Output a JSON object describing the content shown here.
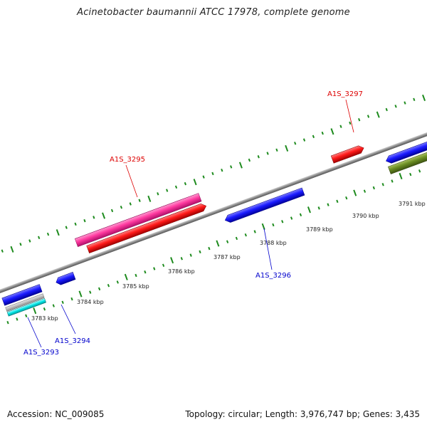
{
  "title": "Acinetobacter baumannii ATCC 17978, complete genome",
  "footer": {
    "accession": "Accession: NC_009085",
    "info": "Topology: circular; Length: 3,976,747 bp; Genes: 3,435"
  },
  "colors": {
    "plus_strand_gene": "#ff0000",
    "minus_strand_gene": "#0000ff",
    "rna": "#ff40a0",
    "other_olive": "#6b8e23",
    "grey_feature": "#aaaaaa",
    "cyan_feature": "#00e5e5",
    "tick": "#1e8b1e",
    "backbone": "#888888"
  },
  "scale": {
    "unit": "kbp",
    "labels": [
      "3783 kbp",
      "3784 kbp",
      "3785 kbp",
      "3786 kbp",
      "3787 kbp",
      "3788 kbp",
      "3789 kbp",
      "3790 kbp",
      "3791 kbp"
    ]
  },
  "genes": [
    {
      "label": "A1S_3293",
      "color": "#0000ff"
    },
    {
      "label": "A1S_3294",
      "color": "#0000ff"
    },
    {
      "label": "A1S_3295",
      "color": "#ff0000"
    },
    {
      "label": "A1S_3296",
      "color": "#0000ff"
    },
    {
      "label": "A1S_3297",
      "color": "#ff0000"
    }
  ]
}
